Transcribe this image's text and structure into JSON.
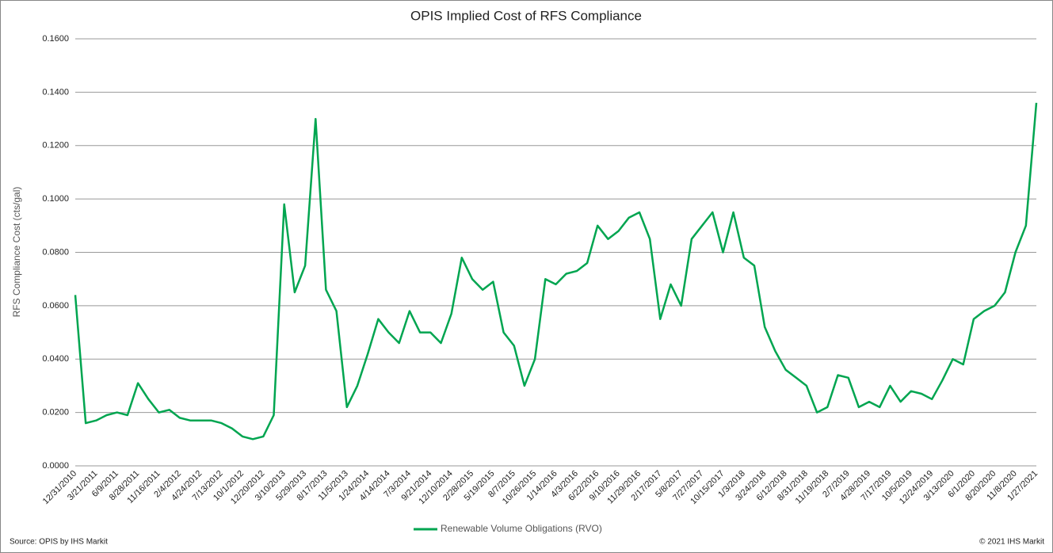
{
  "chart_data": {
    "type": "line",
    "title": "OPIS Implied Cost of RFS Compliance",
    "y_label": "RFS Compliance Cost (cts/gal)",
    "source": "Source: OPIS by IHS Markit",
    "copyright": "© 2021 IHS Markit",
    "categories": [
      "12/31/2010",
      null,
      "3/21/2011",
      null,
      "6/9/2011",
      null,
      "8/28/2011",
      null,
      "11/16/2011",
      null,
      "2/4/2012",
      null,
      "4/24/2012",
      null,
      "7/13/2012",
      null,
      "10/1/2012",
      null,
      "12/20/2012",
      null,
      "3/10/2013",
      null,
      "5/29/2013",
      null,
      "8/17/2013",
      null,
      "11/5/2013",
      null,
      "1/24/2014",
      null,
      "4/14/2014",
      null,
      "7/3/2014",
      null,
      "9/21/2014",
      null,
      "12/10/2014",
      null,
      "2/28/2015",
      null,
      "5/19/2015",
      null,
      "8/7/2015",
      null,
      "10/26/2015",
      null,
      "1/14/2016",
      null,
      "4/3/2016",
      null,
      "6/22/2016",
      null,
      "9/10/2016",
      null,
      "11/29/2016",
      null,
      "2/17/2017",
      null,
      "5/8/2017",
      null,
      "7/27/2017",
      null,
      "10/15/2017",
      null,
      "1/3/2018",
      null,
      "3/24/2018",
      null,
      "6/12/2018",
      null,
      "8/31/2018",
      null,
      "11/19/2018",
      null,
      "2/7/2019",
      null,
      "4/28/2019",
      null,
      "7/17/2019",
      null,
      "10/5/2019",
      null,
      "12/24/2019",
      null,
      "3/13/2020",
      null,
      "6/1/2020",
      null,
      "8/20/2020",
      null,
      "11/8/2020",
      null,
      "1/27/2021"
    ],
    "series": [
      {
        "name": "Renewable Volume Obligations (RVO)",
        "color": "#00a550",
        "values": [
          0.064,
          0.016,
          0.017,
          0.019,
          0.02,
          0.019,
          0.031,
          0.025,
          0.02,
          0.021,
          0.018,
          0.017,
          0.017,
          0.017,
          0.016,
          0.014,
          0.011,
          0.01,
          0.011,
          0.019,
          0.098,
          0.065,
          0.075,
          0.13,
          0.066,
          0.058,
          0.022,
          0.03,
          0.042,
          0.055,
          0.05,
          0.046,
          0.058,
          0.05,
          0.05,
          0.046,
          0.057,
          0.078,
          0.07,
          0.066,
          0.069,
          0.05,
          0.045,
          0.03,
          0.04,
          0.07,
          0.068,
          0.072,
          0.073,
          0.076,
          0.09,
          0.085,
          0.088,
          0.093,
          0.095,
          0.085,
          0.055,
          0.068,
          0.06,
          0.085,
          0.09,
          0.095,
          0.08,
          0.095,
          0.078,
          0.075,
          0.052,
          0.043,
          0.036,
          0.033,
          0.03,
          0.02,
          0.022,
          0.034,
          0.033,
          0.022,
          0.024,
          0.022,
          0.03,
          0.024,
          0.028,
          0.027,
          0.025,
          0.032,
          0.04,
          0.038,
          0.055,
          0.058,
          0.06,
          0.065,
          0.08,
          0.09,
          0.136
        ]
      }
    ],
    "ylim": [
      0,
      0.16
    ],
    "yticks": [
      {
        "value": 0,
        "label": "0.0000"
      },
      {
        "value": 0.02,
        "label": "0.0200"
      },
      {
        "value": 0.04,
        "label": "0.0400"
      },
      {
        "value": 0.06,
        "label": "0.0600"
      },
      {
        "value": 0.08,
        "label": "0.0800"
      },
      {
        "value": 0.1,
        "label": "0.1000"
      },
      {
        "value": 0.12,
        "label": "0.1200"
      },
      {
        "value": 0.14,
        "label": "0.1400"
      },
      {
        "value": 0.16,
        "label": "0.1600"
      }
    ],
    "grid": true
  }
}
